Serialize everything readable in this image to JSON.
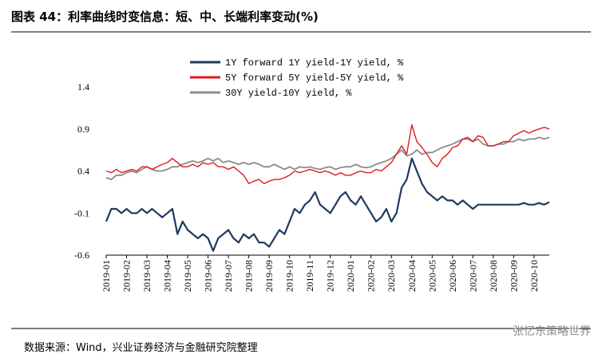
{
  "chart_data": {
    "type": "line",
    "title": "图表 44：利率曲线时变信息：短、中、长端利率变动(%)",
    "source": "数据来源：Wind，兴业证券经济与金融研究院整理",
    "watermark": "张忆东策略世界",
    "categories": [
      "2019-01",
      null,
      null,
      null,
      "2019-02",
      null,
      null,
      null,
      "2019-03",
      null,
      null,
      null,
      "2019-04",
      null,
      null,
      null,
      "2019-05",
      null,
      null,
      null,
      "2019-06",
      null,
      null,
      null,
      "2019-07",
      null,
      null,
      null,
      "2019-08",
      null,
      null,
      null,
      "2019-09",
      null,
      null,
      null,
      "2019-10",
      null,
      null,
      null,
      "2019-11",
      null,
      null,
      null,
      "2019-12",
      null,
      null,
      null,
      "2020-01",
      null,
      null,
      null,
      "2020-02",
      null,
      null,
      null,
      "2020-03",
      null,
      null,
      null,
      "2020-04",
      null,
      null,
      null,
      "2020-05",
      null,
      null,
      null,
      "2020-06",
      null,
      null,
      null,
      "2020-07",
      null,
      null,
      null,
      "2020-08",
      null,
      null,
      null,
      "2020-09",
      null,
      null,
      null,
      "2020-10",
      null,
      null,
      null
    ],
    "series": [
      {
        "name": "1Y forward 1Y yield-1Y yield, %",
        "color": "#1f3a5f",
        "width": 2.2,
        "values": [
          -0.2,
          -0.05,
          -0.05,
          -0.1,
          -0.05,
          -0.1,
          -0.1,
          -0.05,
          -0.1,
          -0.05,
          -0.1,
          -0.15,
          -0.1,
          -0.05,
          -0.35,
          -0.2,
          -0.3,
          -0.35,
          -0.4,
          -0.35,
          -0.4,
          -0.55,
          -0.4,
          -0.35,
          -0.3,
          -0.4,
          -0.45,
          -0.35,
          -0.4,
          -0.35,
          -0.45,
          -0.45,
          -0.5,
          -0.4,
          -0.3,
          -0.35,
          -0.2,
          -0.05,
          -0.1,
          0.0,
          0.05,
          0.15,
          0.0,
          -0.05,
          -0.1,
          0.0,
          0.1,
          0.15,
          0.05,
          0.0,
          0.1,
          0.0,
          -0.1,
          -0.2,
          -0.15,
          -0.05,
          -0.2,
          -0.1,
          0.2,
          0.3,
          0.55,
          0.4,
          0.25,
          0.15,
          0.1,
          0.05,
          0.1,
          0.05,
          0.05,
          0.0,
          0.05,
          0.0,
          -0.05,
          0.0,
          0.0,
          0.0,
          0.0,
          0.0,
          0.0,
          0.0,
          0.0,
          0.0,
          0.02,
          0.0,
          0.0,
          0.02,
          0.0,
          0.03
        ]
      },
      {
        "name": "5Y forward 5Y yield-5Y yield, %",
        "color": "#e31a1c",
        "width": 1.4,
        "values": [
          0.4,
          0.38,
          0.42,
          0.38,
          0.4,
          0.42,
          0.4,
          0.45,
          0.45,
          0.42,
          0.45,
          0.48,
          0.5,
          0.55,
          0.5,
          0.45,
          0.45,
          0.48,
          0.45,
          0.5,
          0.48,
          0.5,
          0.45,
          0.45,
          0.42,
          0.45,
          0.4,
          0.35,
          0.25,
          0.28,
          0.3,
          0.25,
          0.28,
          0.3,
          0.3,
          0.32,
          0.35,
          0.4,
          0.38,
          0.4,
          0.42,
          0.4,
          0.38,
          0.4,
          0.38,
          0.35,
          0.38,
          0.35,
          0.35,
          0.38,
          0.4,
          0.38,
          0.38,
          0.42,
          0.4,
          0.45,
          0.5,
          0.6,
          0.7,
          0.6,
          0.95,
          0.75,
          0.68,
          0.6,
          0.5,
          0.45,
          0.55,
          0.6,
          0.68,
          0.7,
          0.78,
          0.8,
          0.75,
          0.82,
          0.8,
          0.7,
          0.7,
          0.72,
          0.75,
          0.75,
          0.82,
          0.85,
          0.88,
          0.85,
          0.88,
          0.9,
          0.92,
          0.9
        ]
      },
      {
        "name": "30Y yield-10Y yield, %",
        "color": "#8c8c8c",
        "width": 1.8,
        "values": [
          0.32,
          0.3,
          0.35,
          0.35,
          0.38,
          0.4,
          0.38,
          0.42,
          0.45,
          0.42,
          0.4,
          0.4,
          0.42,
          0.45,
          0.45,
          0.48,
          0.5,
          0.52,
          0.5,
          0.52,
          0.55,
          0.52,
          0.55,
          0.5,
          0.52,
          0.5,
          0.48,
          0.5,
          0.48,
          0.5,
          0.48,
          0.45,
          0.45,
          0.48,
          0.45,
          0.42,
          0.45,
          0.42,
          0.45,
          0.44,
          0.45,
          0.43,
          0.42,
          0.44,
          0.45,
          0.42,
          0.44,
          0.45,
          0.45,
          0.48,
          0.45,
          0.44,
          0.45,
          0.48,
          0.5,
          0.52,
          0.55,
          0.6,
          0.65,
          0.58,
          0.6,
          0.65,
          0.6,
          0.62,
          0.62,
          0.65,
          0.68,
          0.7,
          0.72,
          0.75,
          0.78,
          0.78,
          0.75,
          0.78,
          0.72,
          0.7,
          0.7,
          0.72,
          0.72,
          0.75,
          0.75,
          0.78,
          0.76,
          0.78,
          0.78,
          0.8,
          0.78,
          0.8
        ]
      }
    ],
    "ylim": [
      -0.6,
      1.4
    ],
    "yticks": [
      -0.6,
      -0.1,
      0.4,
      0.9,
      1.4
    ],
    "grid": false
  }
}
